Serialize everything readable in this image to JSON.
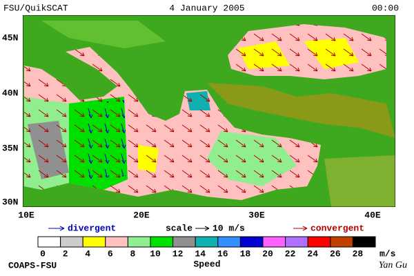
{
  "header": {
    "left": "FSU/QuikSCAT",
    "center": "4 January 2005",
    "right": "00:00"
  },
  "map": {
    "lat_labels": [
      "45N",
      "40N",
      "35N",
      "30N"
    ],
    "lon_labels": [
      "10E",
      "20E",
      "30E",
      "40E"
    ]
  },
  "legend": {
    "divergent": "divergent",
    "scale": "scale",
    "scale_value": "10 m/s",
    "convergent": "convergent"
  },
  "colorbar": {
    "ticks": [
      0,
      2,
      4,
      6,
      8,
      10,
      12,
      14,
      16,
      18,
      20,
      22,
      24,
      26,
      28
    ],
    "colors": [
      "#ffffff",
      "#cccccc",
      "#ffff00",
      "#ffc0c0",
      "#90ee90",
      "#00e000",
      "#909090",
      "#10b0b0",
      "#3090ff",
      "#0000d0",
      "#ff60ff",
      "#b070ff",
      "#ff0000",
      "#c04000",
      "#000000"
    ],
    "unit": "m/s",
    "label": "Speed"
  },
  "footer": {
    "left": "COAPS-FSU",
    "right": "Yan Gu"
  }
}
